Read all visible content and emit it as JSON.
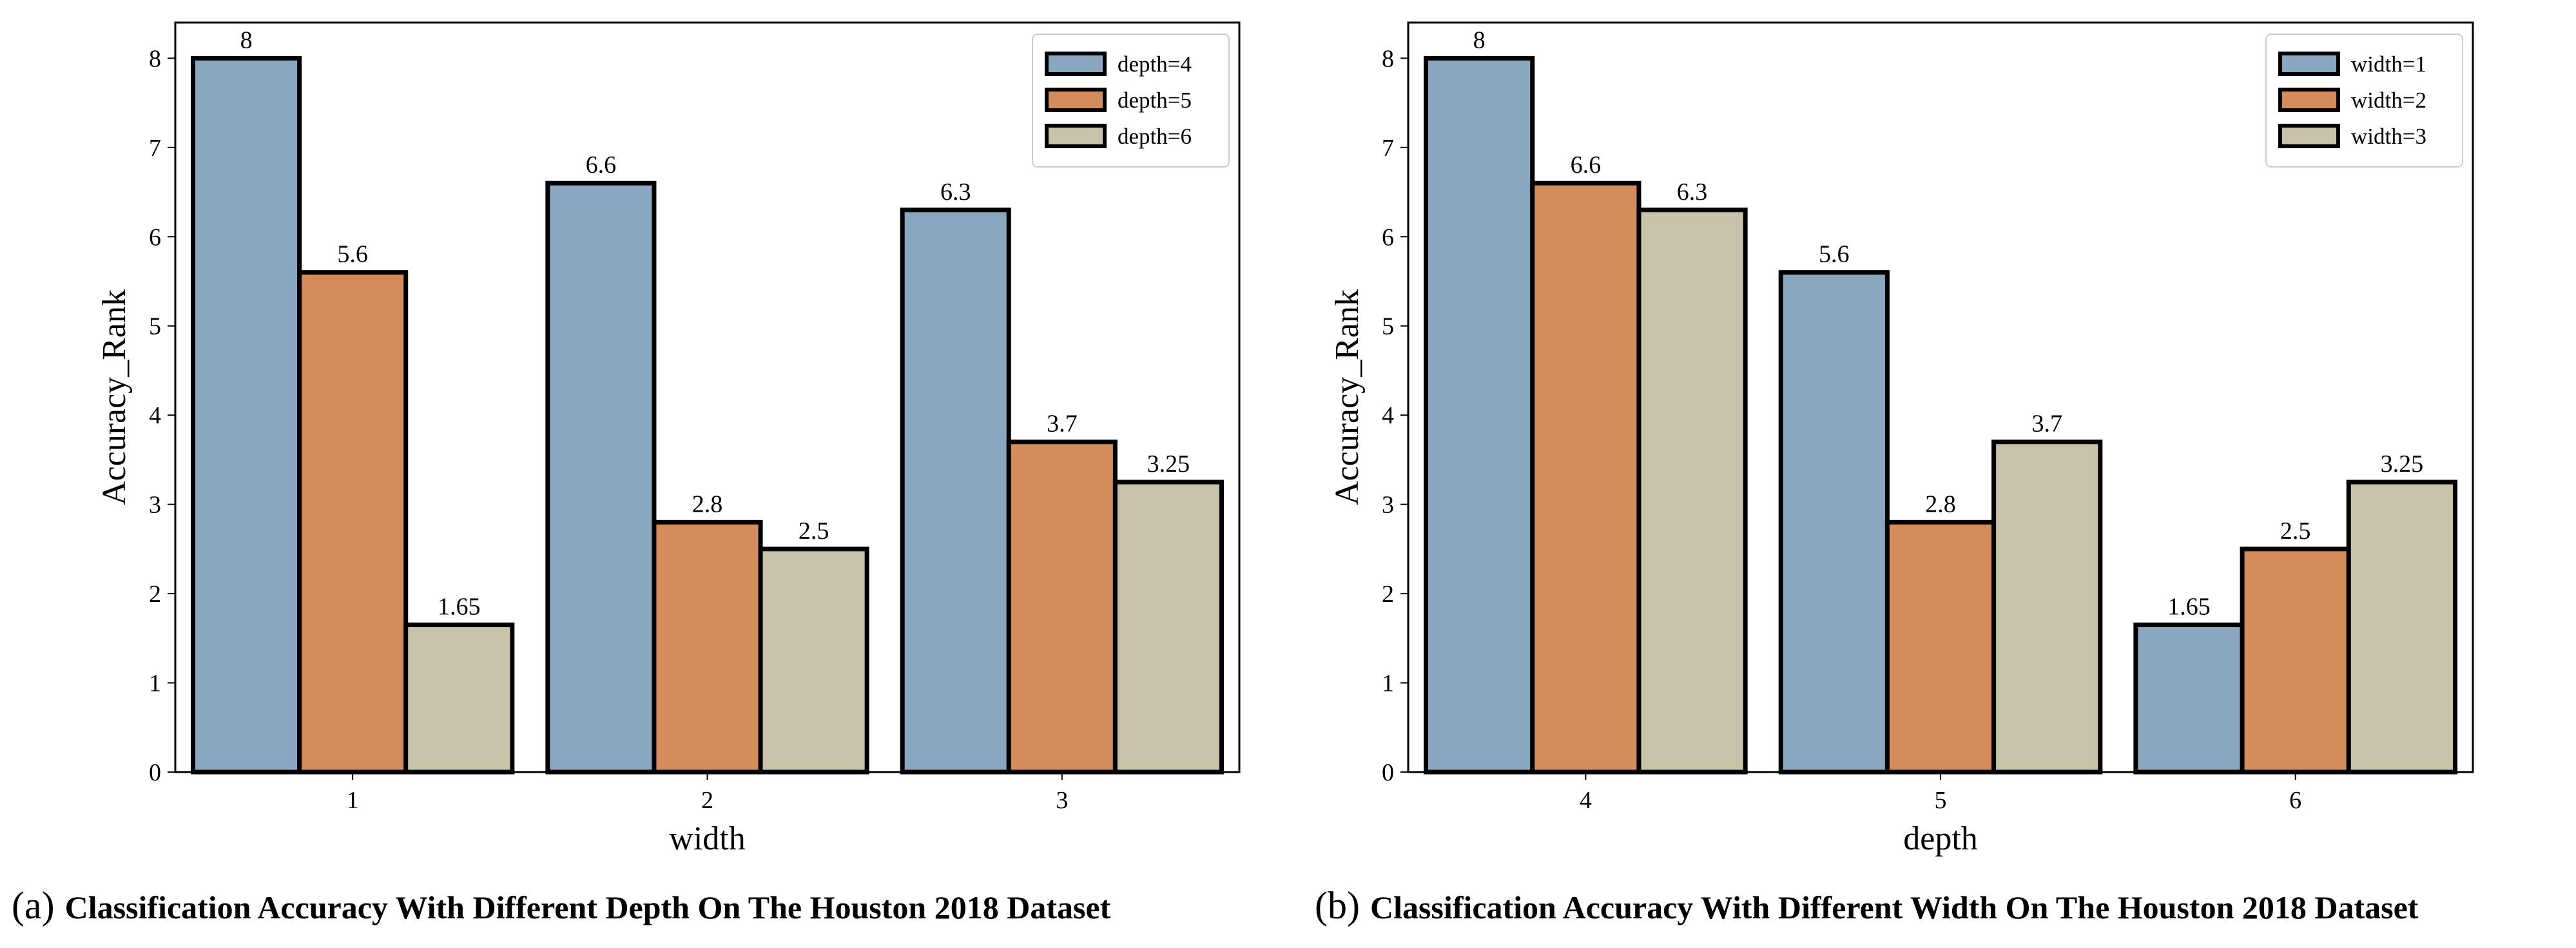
{
  "chart_data": [
    {
      "type": "bar",
      "panel": "(a)",
      "title": "Classification Accuracy With Different Depth On The Houston 2018 Dataset",
      "xlabel": "width",
      "ylabel": "Accuracy_Rank",
      "ylim": [
        0,
        8.4
      ],
      "yticks": [
        0,
        1,
        2,
        3,
        4,
        5,
        6,
        7,
        8
      ],
      "categories": [
        "1",
        "2",
        "3"
      ],
      "legend_position": "top-right",
      "series": [
        {
          "name": "depth=4",
          "values": [
            8,
            6.6,
            6.3
          ],
          "labels": [
            "8",
            "6.6",
            "6.3"
          ],
          "color": "#8aa7c1"
        },
        {
          "name": "depth=5",
          "values": [
            5.6,
            2.8,
            3.7
          ],
          "labels": [
            "5.6",
            "2.8",
            "3.7"
          ],
          "color": "#d58c5b"
        },
        {
          "name": "depth=6",
          "values": [
            1.65,
            2.5,
            3.25
          ],
          "labels": [
            "1.65",
            "2.5",
            "3.25"
          ],
          "color": "#c8c2a9"
        }
      ]
    },
    {
      "type": "bar",
      "panel": "(b)",
      "title": "Classification Accuracy With Different Width On The Houston 2018 Dataset",
      "xlabel": "depth",
      "ylabel": "Accuracy_Rank",
      "ylim": [
        0,
        8.4
      ],
      "yticks": [
        0,
        1,
        2,
        3,
        4,
        5,
        6,
        7,
        8
      ],
      "categories": [
        "4",
        "5",
        "6"
      ],
      "legend_position": "top-right",
      "series": [
        {
          "name": "width=1",
          "values": [
            8,
            5.6,
            1.65
          ],
          "labels": [
            "8",
            "5.6",
            "1.65"
          ],
          "color": "#8aa7c1"
        },
        {
          "name": "width=2",
          "values": [
            6.6,
            2.8,
            2.5
          ],
          "labels": [
            "6.6",
            "2.8",
            "2.5"
          ],
          "color": "#d58c5b"
        },
        {
          "name": "width=3",
          "values": [
            6.3,
            3.7,
            3.25
          ],
          "labels": [
            "6.3",
            "3.7",
            "3.25"
          ],
          "color": "#c8c2a9"
        }
      ]
    }
  ]
}
